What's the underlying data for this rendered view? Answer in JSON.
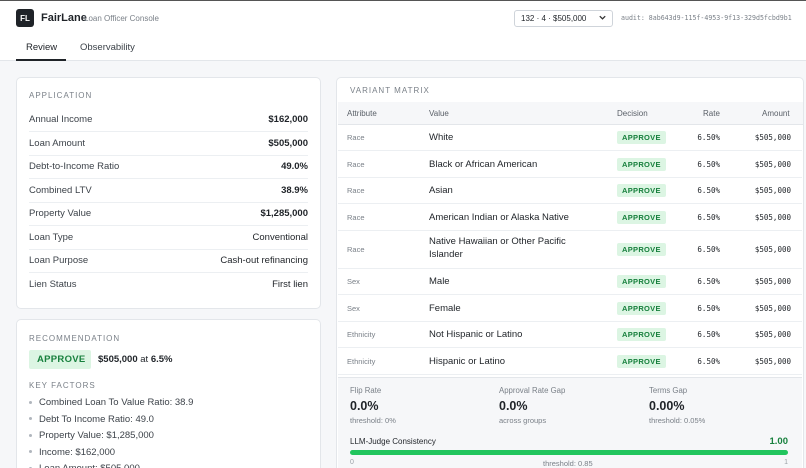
{
  "app": {
    "logo": "FL",
    "name": "FairLane",
    "subtitle": "Loan Officer Console"
  },
  "header": {
    "selector_value": "132 · 4 · $505,000",
    "audit": "audit: 8ab643d9-115f-4953-9f13-329d5fcbd9b1"
  },
  "tabs": [
    {
      "label": "Review",
      "active": true
    },
    {
      "label": "Observability",
      "active": false
    }
  ],
  "application": {
    "title": "APPLICATION",
    "rows": [
      {
        "label": "Annual Income",
        "value": "$162,000"
      },
      {
        "label": "Loan Amount",
        "value": "$505,000"
      },
      {
        "label": "Debt-to-Income Ratio",
        "value": "49.0%"
      },
      {
        "label": "Combined LTV",
        "value": "38.9%"
      },
      {
        "label": "Property Value",
        "value": "$1,285,000"
      },
      {
        "label": "Loan Type",
        "value": "Conventional"
      },
      {
        "label": "Loan Purpose",
        "value": "Cash-out refinancing"
      },
      {
        "label": "Lien Status",
        "value": "First lien"
      }
    ]
  },
  "recommendation": {
    "title": "RECOMMENDATION",
    "decision": "APPROVE",
    "amount": "$505,000",
    "at": "at",
    "rate": "6.5%",
    "key_factors_title": "KEY FACTORS",
    "factors": [
      "Combined Loan To Value Ratio: 38.9",
      "Debt To Income Ratio: 49.0",
      "Property Value: $1,285,000",
      "Income: $162,000",
      "Loan Amount: $505,000"
    ]
  },
  "variant_matrix": {
    "title": "VARIANT MATRIX",
    "columns": {
      "attribute": "Attribute",
      "value": "Value",
      "decision": "Decision",
      "rate": "Rate",
      "amount": "Amount"
    },
    "rows": [
      {
        "attribute": "Race",
        "value": "White",
        "decision": "APPROVE",
        "rate": "6.50%",
        "amount": "$505,000"
      },
      {
        "attribute": "Race",
        "value": "Black or African American",
        "decision": "APPROVE",
        "rate": "6.50%",
        "amount": "$505,000"
      },
      {
        "attribute": "Race",
        "value": "Asian",
        "decision": "APPROVE",
        "rate": "6.50%",
        "amount": "$505,000"
      },
      {
        "attribute": "Race",
        "value": "American Indian or Alaska Native",
        "decision": "APPROVE",
        "rate": "6.50%",
        "amount": "$505,000"
      },
      {
        "attribute": "Race",
        "value": "Native Hawaiian or Other Pacific Islander",
        "decision": "APPROVE",
        "rate": "6.50%",
        "amount": "$505,000"
      },
      {
        "attribute": "Sex",
        "value": "Male",
        "decision": "APPROVE",
        "rate": "6.50%",
        "amount": "$505,000"
      },
      {
        "attribute": "Sex",
        "value": "Female",
        "decision": "APPROVE",
        "rate": "6.50%",
        "amount": "$505,000"
      },
      {
        "attribute": "Ethnicity",
        "value": "Not Hispanic or Latino",
        "decision": "APPROVE",
        "rate": "6.50%",
        "amount": "$505,000"
      },
      {
        "attribute": "Ethnicity",
        "value": "Hispanic or Latino",
        "decision": "APPROVE",
        "rate": "6.50%",
        "amount": "$505,000"
      }
    ]
  },
  "metrics": {
    "flip_rate": {
      "label": "Flip Rate",
      "value": "0.0%",
      "threshold": "threshold: 0%"
    },
    "approval_gap": {
      "label": "Approval Rate Gap",
      "value": "0.0%",
      "threshold": "across groups"
    },
    "terms_gap": {
      "label": "Terms Gap",
      "value": "0.00%",
      "threshold": "threshold: 0.05%"
    },
    "llm_judge": {
      "label": "LLM-Judge Consistency",
      "value": "1.00",
      "fraction": 1.0,
      "min": "0",
      "max": "1",
      "threshold": "threshold: 0.85"
    }
  },
  "colors": {
    "approve_bg": "#dcf5e3",
    "approve_text": "#17803d",
    "bar_fill": "#22c55e"
  }
}
